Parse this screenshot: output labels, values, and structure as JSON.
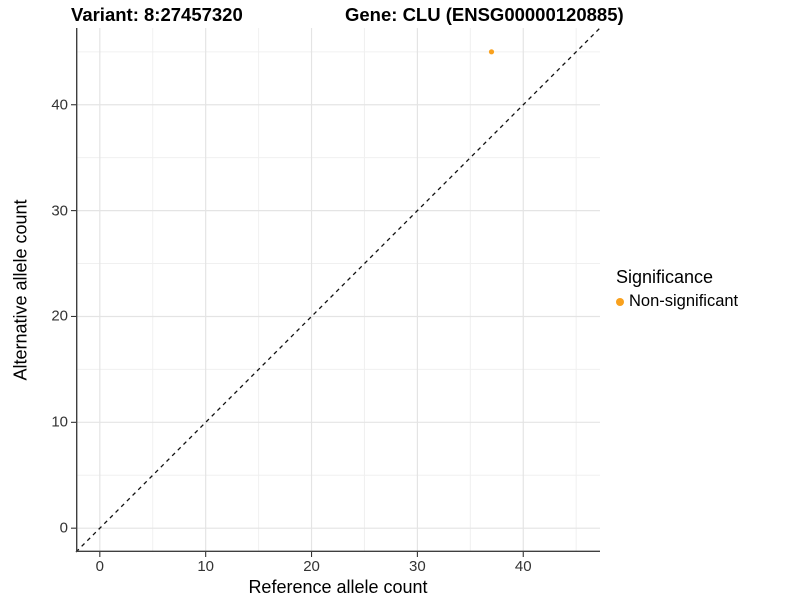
{
  "titles": {
    "variant": "Variant: 8:27457320",
    "gene": "Gene: CLU (ENSG00000120885)"
  },
  "axes": {
    "x_label": "Reference allele count",
    "y_label": "Alternative allele count"
  },
  "legend": {
    "title": "Significance",
    "items": [
      {
        "label": "Non-significant",
        "color": "#F9A11E"
      }
    ]
  },
  "chart_data": {
    "type": "scatter",
    "title": "Variant: 8:27457320   Gene: CLU (ENSG00000120885)",
    "xlabel": "Reference allele count",
    "ylabel": "Alternative allele count",
    "xlim": [
      -2.25,
      47.25
    ],
    "ylim": [
      -2.25,
      47.25
    ],
    "x_ticks": [
      0,
      10,
      20,
      30,
      40
    ],
    "y_ticks": [
      0,
      10,
      20,
      30,
      40
    ],
    "major_gridlines": [
      0,
      10,
      20,
      30,
      40
    ],
    "minor_gridlines": [
      5,
      15,
      25,
      35,
      45
    ],
    "grid": true,
    "legend_position": "right",
    "series": [
      {
        "name": "Non-significant",
        "color": "#F9A11E",
        "points": [
          {
            "x": 37,
            "y": 45
          }
        ]
      }
    ],
    "reference_line": {
      "type": "identity",
      "slope": 1,
      "intercept": 0,
      "style": "dashed",
      "color": "#111111"
    },
    "colors": {
      "background": "#ffffff",
      "major_grid": "#e4e4e4",
      "minor_grid": "#f0f0f0",
      "axis_line": "#3f3f3f",
      "tick_mark": "#333333",
      "tick_label": "#333333",
      "point": "#F9A11E"
    },
    "point_radius": 2.6,
    "tick_length": 5
  }
}
